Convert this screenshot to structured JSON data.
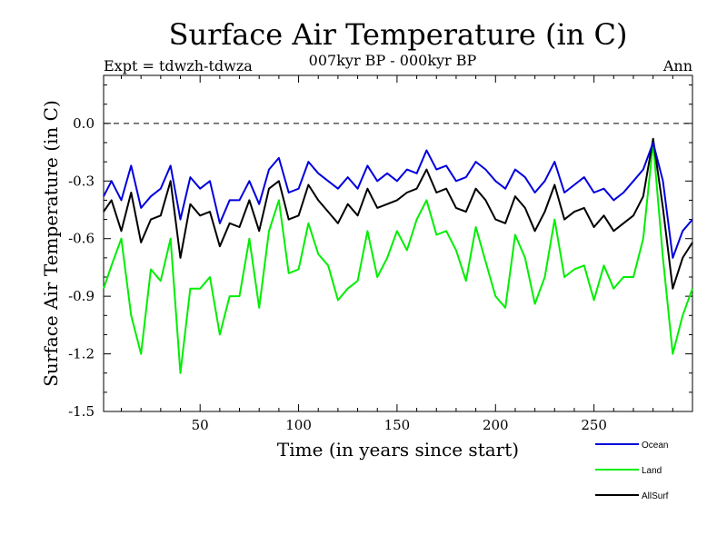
{
  "chart_data": {
    "type": "line",
    "title": "Surface Air Temperature (in C)",
    "subtitle": "007kyr BP - 000kyr BP",
    "left_note": "Expt = tdwzh-tdwza",
    "right_note": "Ann",
    "xlabel": "Time (in years since start)",
    "ylabel": "Surface Air Temperature (in C)",
    "xlim": [
      1,
      300
    ],
    "ylim": [
      -1.5,
      0.25
    ],
    "xticks": [
      50,
      100,
      150,
      200,
      250
    ],
    "yticks": [
      0.0,
      -0.3,
      -0.6,
      -0.9,
      -1.2,
      -1.5
    ],
    "ytick_labels": [
      "0.0",
      "-0.3",
      "-0.6",
      "-0.9",
      "-1.2",
      "-1.5"
    ],
    "reference_line": 0.0,
    "legend_position": "bottom-right",
    "series": [
      {
        "name": "Ocean",
        "color": "#0000dd",
        "x": [
          1,
          5,
          10,
          15,
          20,
          25,
          30,
          35,
          40,
          45,
          50,
          55,
          60,
          65,
          70,
          75,
          80,
          85,
          90,
          95,
          100,
          105,
          110,
          115,
          120,
          125,
          130,
          135,
          140,
          145,
          150,
          155,
          160,
          165,
          170,
          175,
          180,
          185,
          190,
          195,
          200,
          205,
          210,
          215,
          220,
          225,
          230,
          235,
          240,
          245,
          250,
          255,
          260,
          265,
          270,
          275,
          280,
          285,
          290,
          295,
          300
        ],
        "values": [
          -0.38,
          -0.3,
          -0.4,
          -0.22,
          -0.44,
          -0.38,
          -0.34,
          -0.22,
          -0.5,
          -0.28,
          -0.34,
          -0.3,
          -0.52,
          -0.4,
          -0.4,
          -0.3,
          -0.42,
          -0.24,
          -0.18,
          -0.36,
          -0.34,
          -0.2,
          -0.26,
          -0.3,
          -0.34,
          -0.28,
          -0.34,
          -0.22,
          -0.3,
          -0.26,
          -0.3,
          -0.24,
          -0.26,
          -0.14,
          -0.24,
          -0.22,
          -0.3,
          -0.28,
          -0.2,
          -0.24,
          -0.3,
          -0.34,
          -0.24,
          -0.28,
          -0.36,
          -0.3,
          -0.2,
          -0.36,
          -0.32,
          -0.28,
          -0.36,
          -0.34,
          -0.4,
          -0.36,
          -0.3,
          -0.24,
          -0.1,
          -0.3,
          -0.7,
          -0.56,
          -0.5
        ]
      },
      {
        "name": "Land",
        "color": "#00ee00",
        "x": [
          1,
          5,
          10,
          15,
          20,
          25,
          30,
          35,
          40,
          45,
          50,
          55,
          60,
          65,
          70,
          75,
          80,
          85,
          90,
          95,
          100,
          105,
          110,
          115,
          120,
          125,
          130,
          135,
          140,
          145,
          150,
          155,
          160,
          165,
          170,
          175,
          180,
          185,
          190,
          195,
          200,
          205,
          210,
          215,
          220,
          225,
          230,
          235,
          240,
          245,
          250,
          255,
          260,
          265,
          270,
          275,
          280,
          285,
          290,
          295,
          300
        ],
        "values": [
          -0.86,
          -0.74,
          -0.6,
          -1.0,
          -1.2,
          -0.76,
          -0.82,
          -0.6,
          -1.3,
          -0.86,
          -0.86,
          -0.8,
          -1.1,
          -0.9,
          -0.9,
          -0.6,
          -0.96,
          -0.56,
          -0.4,
          -0.78,
          -0.76,
          -0.52,
          -0.68,
          -0.74,
          -0.92,
          -0.86,
          -0.82,
          -0.56,
          -0.8,
          -0.7,
          -0.56,
          -0.66,
          -0.5,
          -0.4,
          -0.58,
          -0.56,
          -0.66,
          -0.82,
          -0.54,
          -0.72,
          -0.9,
          -0.96,
          -0.58,
          -0.7,
          -0.94,
          -0.8,
          -0.5,
          -0.8,
          -0.76,
          -0.74,
          -0.92,
          -0.74,
          -0.86,
          -0.8,
          -0.8,
          -0.6,
          -0.1,
          -0.7,
          -1.2,
          -1.0,
          -0.86
        ]
      },
      {
        "name": "AllSurf",
        "color": "#000000",
        "x": [
          1,
          5,
          10,
          15,
          20,
          25,
          30,
          35,
          40,
          45,
          50,
          55,
          60,
          65,
          70,
          75,
          80,
          85,
          90,
          95,
          100,
          105,
          110,
          115,
          120,
          125,
          130,
          135,
          140,
          145,
          150,
          155,
          160,
          165,
          170,
          175,
          180,
          185,
          190,
          195,
          200,
          205,
          210,
          215,
          220,
          225,
          230,
          235,
          240,
          245,
          250,
          255,
          260,
          265,
          270,
          275,
          280,
          285,
          290,
          295,
          300
        ],
        "values": [
          -0.46,
          -0.4,
          -0.56,
          -0.36,
          -0.62,
          -0.5,
          -0.48,
          -0.3,
          -0.7,
          -0.42,
          -0.48,
          -0.46,
          -0.64,
          -0.52,
          -0.54,
          -0.4,
          -0.56,
          -0.34,
          -0.3,
          -0.5,
          -0.48,
          -0.32,
          -0.4,
          -0.46,
          -0.52,
          -0.42,
          -0.48,
          -0.34,
          -0.44,
          -0.42,
          -0.4,
          -0.36,
          -0.34,
          -0.24,
          -0.36,
          -0.34,
          -0.44,
          -0.46,
          -0.34,
          -0.4,
          -0.5,
          -0.52,
          -0.38,
          -0.44,
          -0.56,
          -0.46,
          -0.32,
          -0.5,
          -0.46,
          -0.44,
          -0.54,
          -0.48,
          -0.56,
          -0.52,
          -0.48,
          -0.38,
          -0.08,
          -0.44,
          -0.86,
          -0.7,
          -0.62
        ]
      }
    ]
  }
}
